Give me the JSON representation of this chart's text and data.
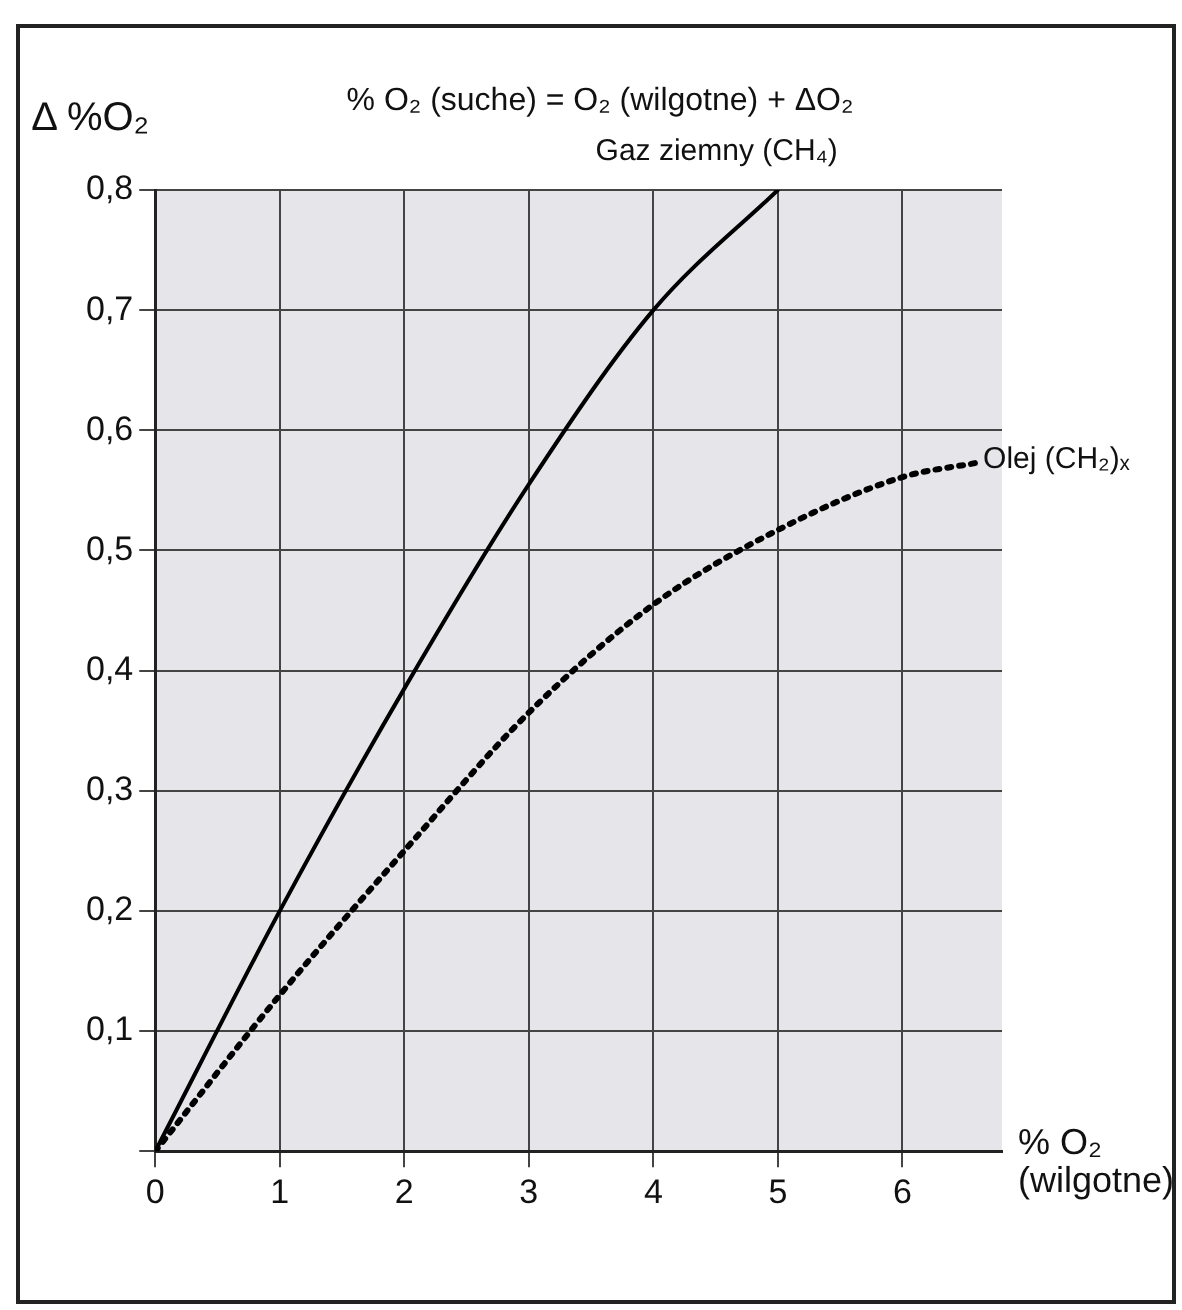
{
  "chart_data": {
    "type": "line",
    "title": "% O₂ (suche) = O₂ (wilgotne) + ΔO₂",
    "ylabel": "Δ %O₂",
    "xlabel": "% O₂ (wilgotne)",
    "xlim": [
      0,
      6.8
    ],
    "xticks": [
      0,
      1,
      2,
      3,
      4,
      5,
      6
    ],
    "ylim": [
      0,
      0.8
    ],
    "yticks": [
      {
        "value": 0,
        "label": null
      },
      {
        "value": 0.1,
        "label": "0,1"
      },
      {
        "value": 0.2,
        "label": "0,2"
      },
      {
        "value": 0.3,
        "label": "0,3"
      },
      {
        "value": 0.4,
        "label": "0,4"
      },
      {
        "value": 0.5,
        "label": "0,5"
      },
      {
        "value": 0.6,
        "label": "0,6"
      },
      {
        "value": 0.7,
        "label": "0,7"
      },
      {
        "value": 0.8,
        "label": "0,8"
      }
    ],
    "grid": true,
    "legend": false,
    "marker": "none",
    "series": [
      {
        "name": "Gaz ziemny (CH₄)",
        "color": "#000000",
        "line_style": "solid",
        "x": [
          0,
          1,
          2,
          3,
          4,
          5
        ],
        "values": [
          0,
          0.2,
          0.385,
          0.555,
          0.7,
          0.8
        ]
      },
      {
        "name": "Olej (CH₂)ₓ",
        "color": "#000000",
        "line_style": "dotted",
        "x": [
          0,
          1,
          2,
          3,
          4,
          5,
          6,
          6.6
        ],
        "values": [
          0,
          0.13,
          0.25,
          0.365,
          0.455,
          0.517,
          0.561,
          0.573
        ]
      }
    ]
  }
}
